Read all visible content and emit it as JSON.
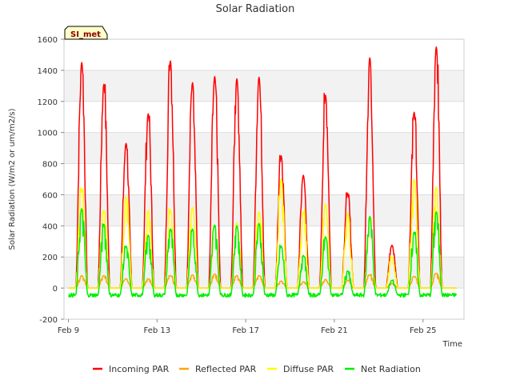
{
  "chart_data": {
    "type": "line",
    "title": "Solar Radiation",
    "xlabel": "Time",
    "ylabel": "Solar Radiation (W/m2 or um/m2/s)",
    "site_label": "SI_met",
    "xlim_days": [
      8.8,
      26.85
    ],
    "ylim": [
      -200,
      1600
    ],
    "y_ticks": [
      -200,
      0,
      200,
      400,
      600,
      800,
      1000,
      1200,
      1400,
      1600
    ],
    "x_ticks": [
      {
        "day": 9,
        "label": "Feb 9"
      },
      {
        "day": 13,
        "label": "Feb 13"
      },
      {
        "day": 17,
        "label": "Feb 17"
      },
      {
        "day": 21,
        "label": "Feb 21"
      },
      {
        "day": 25,
        "label": "Feb 25"
      }
    ],
    "grid": true,
    "legend_position": "bottom",
    "days": [
      9.6,
      10.6,
      11.6,
      12.6,
      13.6,
      14.6,
      15.6,
      16.6,
      17.6,
      18.6,
      19.6,
      20.6,
      21.6,
      22.6,
      23.6,
      24.6,
      25.6
    ],
    "series": [
      {
        "name": "Incoming PAR",
        "color": "#ff0000",
        "values": [
          1450,
          1310,
          930,
          1120,
          1460,
          1320,
          1360,
          1345,
          1355,
          850,
          725,
          1240,
          610,
          1480,
          275,
          1130,
          1550
        ]
      },
      {
        "name": "Reflected PAR",
        "color": "#ffa500",
        "values": [
          80,
          80,
          60,
          60,
          80,
          85,
          90,
          80,
          80,
          45,
          40,
          55,
          50,
          85,
          30,
          75,
          95
        ]
      },
      {
        "name": "Diffuse PAR",
        "color": "#ffff00",
        "values": [
          640,
          500,
          590,
          500,
          500,
          520,
          400,
          420,
          490,
          700,
          490,
          540,
          480,
          440,
          200,
          700,
          650
        ]
      },
      {
        "name": "Net Radiation",
        "color": "#00ee00",
        "values": [
          510,
          410,
          270,
          340,
          380,
          380,
          405,
          400,
          415,
          270,
          210,
          330,
          110,
          460,
          50,
          360,
          490
        ]
      }
    ],
    "night_values": {
      "Incoming PAR": 0,
      "Reflected PAR": 0,
      "Diffuse PAR": 0,
      "Net Radiation": -45
    }
  }
}
